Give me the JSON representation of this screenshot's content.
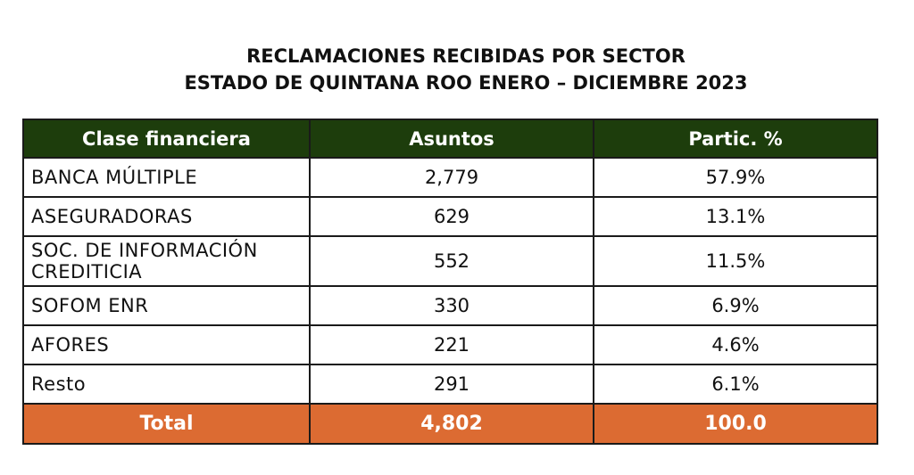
{
  "title": {
    "line1": "RECLAMACIONES RECIBIDAS POR SECTOR",
    "line2": "ESTADO DE QUINTANA ROO ENERO – DICIEMBRE 2023"
  },
  "table": {
    "headers": [
      "Clase financiera",
      "Asuntos",
      "Partic. %"
    ],
    "rows": [
      {
        "clase": "BANCA MÚLTIPLE",
        "asuntos": "2,779",
        "partic": "57.9%"
      },
      {
        "clase": "ASEGURADORAS",
        "asuntos": "629",
        "partic": "13.1%"
      },
      {
        "clase": "SOC. DE INFORMACIÓN CREDITICIA",
        "asuntos": "552",
        "partic": "11.5%"
      },
      {
        "clase": "SOFOM ENR",
        "asuntos": "330",
        "partic": "6.9%"
      },
      {
        "clase": "AFORES",
        "asuntos": "221",
        "partic": "4.6%"
      },
      {
        "clase": "Resto",
        "asuntos": "291",
        "partic": "6.1%"
      }
    ],
    "total": {
      "label": "Total",
      "asuntos": "4,802",
      "partic": "100.0"
    }
  },
  "colors": {
    "header_bg": "#1d3d0c",
    "total_bg": "#dc6b32",
    "border": "#1a1a1a"
  }
}
